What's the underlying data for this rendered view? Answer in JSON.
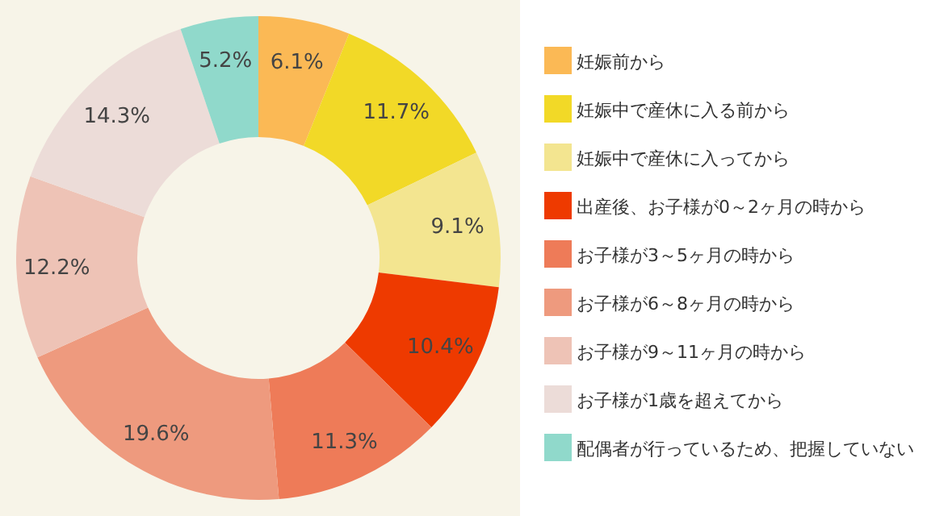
{
  "chart_data": {
    "type": "donut",
    "categories": [
      "妊娠前から",
      "妊娠中で産休に入る前から",
      "妊娠中で産休に入ってから",
      "出産後、お子様が0～2ヶ月の時から",
      "お子様が3～5ヶ月の時から",
      "お子様が6～8ヶ月の時から",
      "お子様が9～11ヶ月の時から",
      "お子様が1歳を超えてから",
      "配偶者が行っているため、把握していない"
    ],
    "values": [
      6.1,
      11.7,
      9.1,
      10.4,
      11.3,
      19.6,
      12.2,
      14.3,
      5.2
    ],
    "value_labels": [
      "6.1%",
      "11.7%",
      "9.1%",
      "10.4%",
      "11.3%",
      "19.6%",
      "12.2%",
      "14.3%",
      "5.2%"
    ],
    "colors": [
      "#fbb955",
      "#f2d927",
      "#f3e590",
      "#ee3a00",
      "#ee7b58",
      "#ee9a7e",
      "#eec3b6",
      "#ecdcd8",
      "#90d9cb"
    ],
    "legend": "right"
  }
}
